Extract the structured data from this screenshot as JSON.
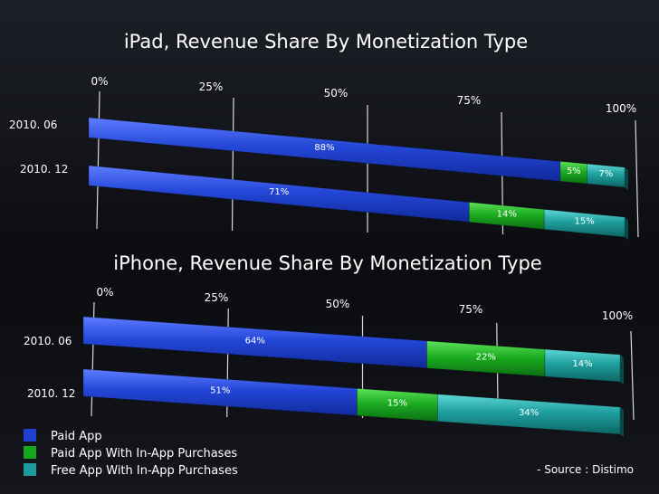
{
  "chart_data": [
    {
      "type": "bar",
      "stacked": true,
      "orientation": "horizontal",
      "title": "iPad, Revenue Share By Monetization Type",
      "categories": [
        "2010. 06",
        "2010. 12"
      ],
      "x_ticks": [
        "0%",
        "25%",
        "50%",
        "75%",
        "100%"
      ],
      "xlim": [
        0,
        100
      ],
      "series": [
        {
          "name": "Paid App",
          "values": [
            88,
            71
          ],
          "labels": [
            "88%",
            "71%"
          ]
        },
        {
          "name": "Paid App With In-App Purchases",
          "values": [
            5,
            14
          ],
          "labels": [
            "5%",
            "14%"
          ]
        },
        {
          "name": "Free App With In-App Purchases",
          "values": [
            7,
            15
          ],
          "labels": [
            "7%",
            "15%"
          ]
        }
      ]
    },
    {
      "type": "bar",
      "stacked": true,
      "orientation": "horizontal",
      "title": "iPhone, Revenue Share By Monetization Type",
      "categories": [
        "2010. 06",
        "2010. 12"
      ],
      "x_ticks": [
        "0%",
        "25%",
        "50%",
        "75%",
        "100%"
      ],
      "xlim": [
        0,
        100
      ],
      "series": [
        {
          "name": "Paid App",
          "values": [
            64,
            51
          ],
          "labels": [
            "64%",
            "51%"
          ]
        },
        {
          "name": "Paid App With In-App Purchases",
          "values": [
            22,
            15
          ],
          "labels": [
            "22%",
            "15%"
          ]
        },
        {
          "name": "Free App With In-App Purchases",
          "values": [
            14,
            34
          ],
          "labels": [
            "14%",
            "34%"
          ]
        }
      ]
    }
  ],
  "legend": {
    "position": "bottom-left",
    "items": [
      "Paid App",
      "Paid App With In-App Purchases",
      "Free App With In-App Purchases"
    ]
  },
  "colors": [
    "#1f3fd1",
    "#16a51f",
    "#1c9c9c"
  ],
  "source": "- Source : Distimo"
}
